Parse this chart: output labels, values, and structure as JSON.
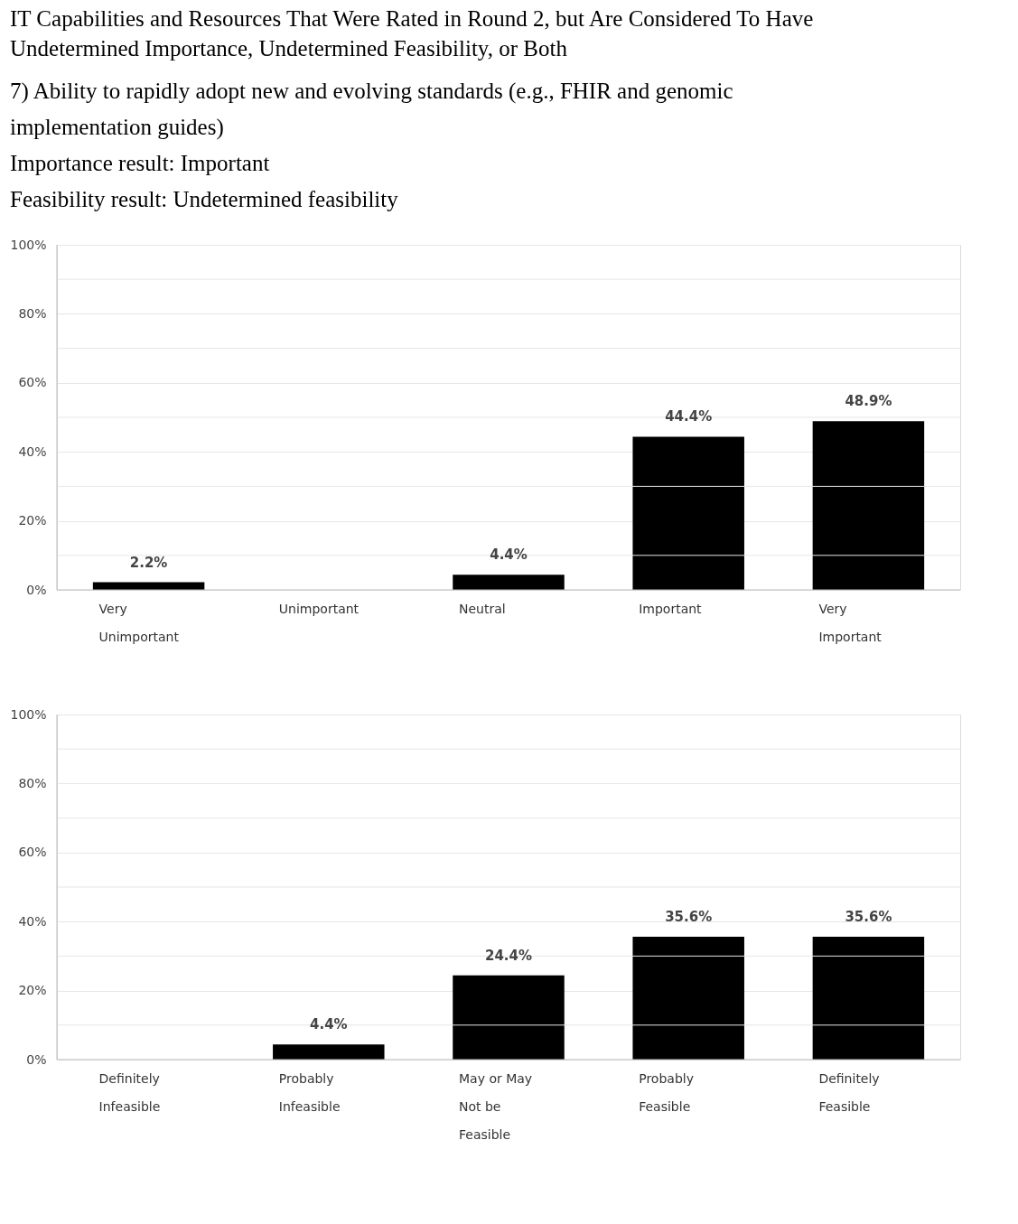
{
  "chart_data": [
    {
      "type": "bar",
      "title": "IT Capabilities and Resources That Were Rated in Round 2, but Are Considered To Have Undetermined Importance, Undetermined Feasibility, or Both",
      "subtitle": "7) Ability to rapidly adopt new and evolving standards (e.g., FHIR and genomic implementation guides)",
      "annotations": [
        "Importance result: Important",
        "Feasibility result: Undetermined feasibility"
      ],
      "categories": [
        "Very Unimportant",
        "Unimportant",
        "Neutral",
        "Important",
        "Very Important"
      ],
      "values": [
        2.2,
        0,
        4.4,
        44.4,
        48.9
      ],
      "value_labels": [
        "2.2%",
        null,
        "4.4%",
        "44.4%",
        "48.9%"
      ],
      "color": "#000000",
      "ylim": [
        0,
        100
      ],
      "yticks": [
        {
          "value": 0,
          "label": "0%"
        },
        {
          "value": 10,
          "label": null
        },
        {
          "value": 20,
          "label": "20%"
        },
        {
          "value": 30,
          "label": null
        },
        {
          "value": 40,
          "label": "40%"
        },
        {
          "value": 50,
          "label": null
        },
        {
          "value": 60,
          "label": "60%"
        },
        {
          "value": 70,
          "label": null
        },
        {
          "value": 80,
          "label": "80%"
        },
        {
          "value": 90,
          "label": null
        },
        {
          "value": 100,
          "label": "100%"
        }
      ],
      "grid": "y"
    },
    {
      "type": "bar",
      "categories": [
        "Definitely Infeasible",
        "Probably Infeasible",
        "May or May Not be Feasible",
        "Probably Feasible",
        "Definitely Feasible"
      ],
      "values": [
        0,
        4.4,
        24.4,
        35.6,
        35.6
      ],
      "value_labels": [
        null,
        "4.4%",
        "24.4%",
        "35.6%",
        "35.6%"
      ],
      "color": "#000000",
      "ylim": [
        0,
        100
      ],
      "yticks": [
        {
          "value": 0,
          "label": "0%"
        },
        {
          "value": 10,
          "label": null
        },
        {
          "value": 20,
          "label": "20%"
        },
        {
          "value": 30,
          "label": null
        },
        {
          "value": 40,
          "label": "40%"
        },
        {
          "value": 50,
          "label": null
        },
        {
          "value": 60,
          "label": "60%"
        },
        {
          "value": 70,
          "label": null
        },
        {
          "value": 80,
          "label": "80%"
        },
        {
          "value": 90,
          "label": null
        },
        {
          "value": 100,
          "label": "100%"
        }
      ],
      "grid": "y"
    }
  ]
}
